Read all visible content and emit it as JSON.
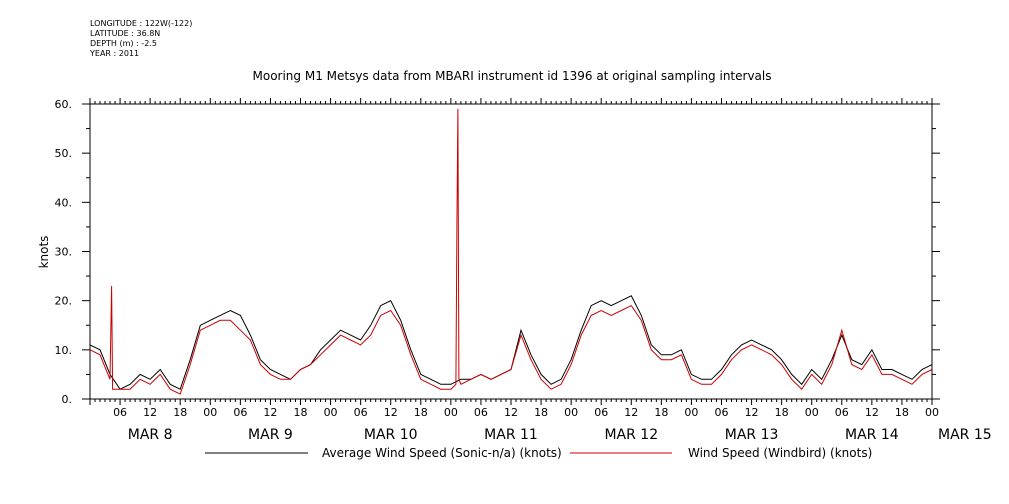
{
  "header": {
    "longitude": "LONGITUDE : 122W(-122)",
    "latitude": "LATITUDE : 36.8N",
    "depth": "DEPTH (m) : -2.5",
    "year": "YEAR : 2011"
  },
  "chart_data": {
    "type": "line",
    "title": "Mooring M1 Metsys data from MBARI instrument id 1396 at original sampling intervals",
    "ylabel": "knots",
    "xlabel": "",
    "ylim": [
      0,
      60
    ],
    "yticks": [
      0,
      10,
      20,
      30,
      40,
      50,
      60
    ],
    "yticklabels": [
      "0.",
      "10.",
      "20.",
      "30.",
      "40.",
      "50.",
      "60."
    ],
    "xlim_hours": [
      0,
      168
    ],
    "hour_tick_labels": [
      "06",
      "12",
      "18",
      "00",
      "06",
      "12",
      "18",
      "00",
      "06",
      "12",
      "18",
      "00",
      "06",
      "12",
      "18",
      "00",
      "06",
      "12",
      "18",
      "00",
      "06",
      "12",
      "18",
      "00",
      "06",
      "12",
      "18",
      "00"
    ],
    "day_labels": [
      {
        "label": "MAR  8",
        "day": 0
      },
      {
        "label": "MAR  9",
        "day": 1
      },
      {
        "label": "MAR 10",
        "day": 2
      },
      {
        "label": "MAR 11",
        "day": 3
      },
      {
        "label": "MAR 12",
        "day": 4
      },
      {
        "label": "MAR 13",
        "day": 5
      },
      {
        "label": "MAR 14",
        "day": 6
      },
      {
        "label": "MAR 15",
        "day": 7
      }
    ],
    "series": [
      {
        "name": "Average Wind Speed (Sonic-n/a) (knots)",
        "color": "#000000",
        "x": [
          0,
          2,
          4,
          6,
          8,
          10,
          12,
          14,
          16,
          18,
          20,
          22,
          24,
          26,
          28,
          30,
          32,
          34,
          36,
          38,
          40,
          42,
          44,
          46,
          48,
          50,
          52,
          54,
          56,
          58,
          60,
          62,
          64,
          66,
          68,
          70,
          72,
          74,
          76,
          78,
          80,
          82,
          84,
          86,
          88,
          90,
          92,
          94,
          96,
          98,
          100,
          102,
          104,
          106,
          108,
          110,
          112,
          114,
          116,
          118,
          120,
          122,
          124,
          126,
          128,
          130,
          132,
          134,
          136,
          138,
          140,
          142,
          144,
          146,
          148,
          150,
          152,
          154,
          156,
          158,
          160,
          162,
          164,
          166,
          168
        ],
        "y": [
          11,
          10,
          5,
          2,
          3,
          5,
          4,
          6,
          3,
          2,
          8,
          15,
          16,
          17,
          18,
          17,
          13,
          8,
          6,
          5,
          4,
          6,
          7,
          10,
          12,
          14,
          13,
          12,
          15,
          19,
          20,
          16,
          10,
          5,
          4,
          3,
          3,
          4,
          4,
          5,
          4,
          5,
          6,
          14,
          9,
          5,
          3,
          4,
          8,
          14,
          19,
          20,
          19,
          20,
          21,
          17,
          11,
          9,
          9,
          10,
          5,
          4,
          4,
          6,
          9,
          11,
          12,
          11,
          10,
          8,
          5,
          3,
          6,
          4,
          8,
          13,
          8,
          7,
          10,
          6,
          6,
          5,
          4,
          6,
          7
        ]
      },
      {
        "name": "Wind Speed (Windbird) (knots)",
        "color": "#cc0000",
        "x": [
          0,
          2,
          4,
          4.3,
          4.5,
          6,
          8,
          10,
          12,
          14,
          16,
          18,
          20,
          22,
          24,
          26,
          28,
          30,
          32,
          34,
          36,
          38,
          40,
          42,
          44,
          46,
          48,
          50,
          52,
          54,
          56,
          58,
          60,
          62,
          64,
          66,
          68,
          70,
          72,
          73,
          73.2,
          73.4,
          73.6,
          74,
          76,
          78,
          80,
          82,
          84,
          86,
          88,
          90,
          92,
          94,
          96,
          98,
          100,
          102,
          104,
          106,
          108,
          110,
          112,
          114,
          116,
          118,
          120,
          122,
          124,
          126,
          128,
          130,
          132,
          134,
          136,
          138,
          140,
          142,
          144,
          146,
          148,
          150,
          152,
          154,
          156,
          158,
          160,
          162,
          164,
          166,
          168
        ],
        "y": [
          10,
          9,
          4,
          23,
          2,
          2,
          2,
          4,
          3,
          5,
          2,
          1,
          7,
          14,
          15,
          16,
          16,
          14,
          12,
          7,
          5,
          4,
          4,
          6,
          7,
          9,
          11,
          13,
          12,
          11,
          13,
          17,
          18,
          15,
          9,
          4,
          3,
          2,
          2,
          3,
          35,
          59,
          4,
          3,
          4,
          5,
          4,
          5,
          6,
          13,
          8,
          4,
          2,
          3,
          7,
          13,
          17,
          18,
          17,
          18,
          19,
          16,
          10,
          8,
          8,
          9,
          4,
          3,
          3,
          5,
          8,
          10,
          11,
          10,
          9,
          7,
          4,
          2,
          5,
          3,
          7,
          14,
          7,
          6,
          9,
          5,
          5,
          4,
          3,
          5,
          6
        ]
      }
    ],
    "legend": {
      "position": "bottom",
      "entries": [
        "Average Wind Speed (Sonic-n/a) (knots)",
        "Wind Speed (Windbird) (knots)"
      ]
    },
    "grid": false
  }
}
